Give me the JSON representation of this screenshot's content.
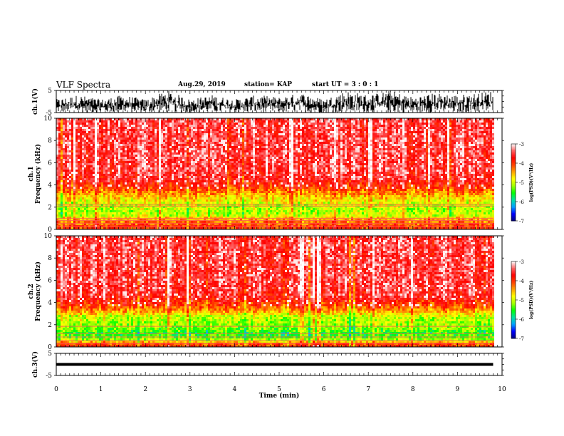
{
  "header": {
    "title": "VLF Spectra",
    "date": "Aug.29, 2019",
    "station": "station= KAP",
    "start": "start  UT =   3 : 0  : 1"
  },
  "colorbar": {
    "label": "log(PSD)(V²/Hz)",
    "ticks": [
      "-3",
      "-4",
      "-5",
      "-6",
      "-7"
    ],
    "colors": [
      "#000080",
      "#0000ff",
      "#00a0ff",
      "#00e0a0",
      "#00ff00",
      "#a0ff00",
      "#ffff00",
      "#ffa000",
      "#ff4000",
      "#ff0000",
      "#ff6060",
      "#ffffff"
    ]
  },
  "chart_data": [
    {
      "type": "line",
      "name": "ch1-waveform",
      "ylabel": "ch.1(V)",
      "ylim": [
        -5,
        5
      ],
      "yticks": [
        "5",
        "-5"
      ],
      "xlim": [
        0,
        10
      ],
      "x": [
        0,
        0.5,
        1,
        1.5,
        2,
        2.5,
        3,
        3.5,
        4,
        4.5,
        5,
        5.5,
        6,
        6.5,
        7,
        7.5,
        8,
        8.5,
        9,
        9.5,
        9.8
      ],
      "y_min": [
        -5,
        -5,
        -5,
        -5,
        -5,
        -5,
        -5,
        -5,
        -5,
        -5,
        -5,
        -5,
        -5,
        -5,
        -5,
        -5,
        -5,
        -5,
        -5,
        -5,
        -5
      ],
      "y_max": [
        1,
        3,
        1,
        3,
        1,
        5,
        1,
        3,
        1,
        3,
        2,
        4,
        1,
        5,
        3,
        5,
        2,
        4,
        3,
        4,
        5
      ]
    },
    {
      "type": "heatmap",
      "name": "ch1-spectrogram",
      "ylabel": "ch.1\nFrequency (kHz)",
      "ylim": [
        0,
        10
      ],
      "yticks": [
        "0",
        "2",
        "4",
        "6",
        "8",
        "10"
      ],
      "xlim": [
        0,
        10
      ],
      "z_range": [
        -7,
        -3
      ],
      "freq_kHz": [
        0.25,
        0.75,
        1.25,
        1.75,
        2.25,
        2.75,
        3.25,
        3.75,
        4.5,
        5.5,
        6.5,
        7.5,
        8.5,
        9.5
      ],
      "mean_log_psd": [
        -4.0,
        -4.3,
        -5.0,
        -5.1,
        -5.0,
        -4.7,
        -4.4,
        -4.0,
        -3.6,
        -3.5,
        -3.5,
        -3.5,
        -3.5,
        -3.5
      ]
    },
    {
      "type": "heatmap",
      "name": "ch2-spectrogram",
      "ylabel": "ch.2\nFrequency (kHz)",
      "ylim": [
        0,
        10
      ],
      "yticks": [
        "0",
        "2",
        "4",
        "6",
        "8",
        "10"
      ],
      "xlim": [
        0,
        10
      ],
      "z_range": [
        -7,
        -3
      ],
      "freq_kHz": [
        0.25,
        0.75,
        1.25,
        1.75,
        2.25,
        2.75,
        3.25,
        3.75,
        4.5,
        5.5,
        6.5,
        7.5,
        8.5,
        9.5
      ],
      "mean_log_psd": [
        -4.0,
        -5.3,
        -5.5,
        -5.2,
        -5.1,
        -5.0,
        -4.4,
        -4.0,
        -3.6,
        -3.5,
        -3.5,
        -3.5,
        -3.5,
        -3.5
      ]
    },
    {
      "type": "line",
      "name": "ch3-waveform",
      "ylabel": "ch.3(V)",
      "ylim": [
        -5,
        5
      ],
      "yticks": [
        "5",
        "-5"
      ],
      "xlim": [
        0,
        10
      ],
      "x": [
        0,
        9.8
      ],
      "y": [
        0,
        0
      ]
    }
  ],
  "x_axis": {
    "label": "Time (min)",
    "ticks": [
      "0",
      "1",
      "2",
      "3",
      "4",
      "5",
      "6",
      "7",
      "8",
      "9",
      "10"
    ]
  }
}
